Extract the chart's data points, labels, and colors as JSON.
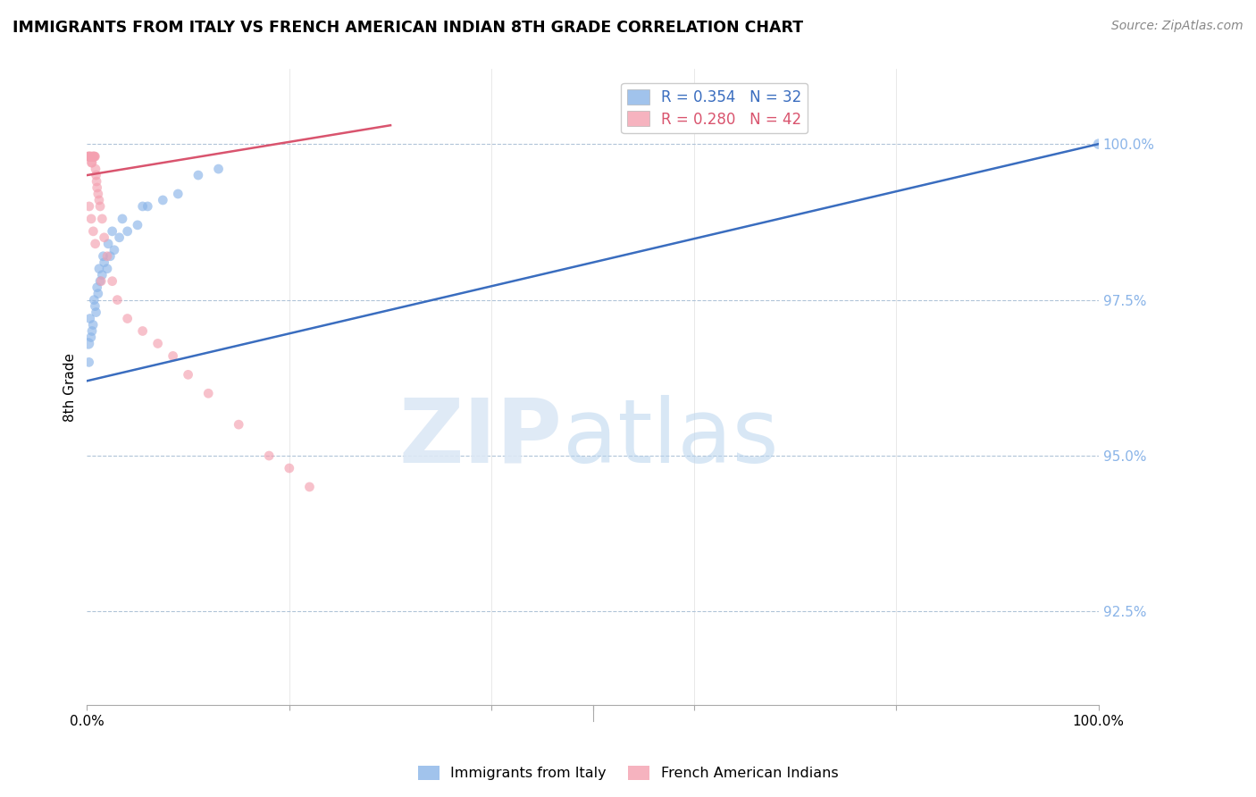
{
  "title": "IMMIGRANTS FROM ITALY VS FRENCH AMERICAN INDIAN 8TH GRADE CORRELATION CHART",
  "source": "Source: ZipAtlas.com",
  "ylabel": "8th Grade",
  "y_ticks": [
    92.5,
    95.0,
    97.5,
    100.0
  ],
  "x_range": [
    0.0,
    100.0
  ],
  "y_range": [
    91.0,
    101.2
  ],
  "blue_label": "Immigrants from Italy",
  "pink_label": "French American Indians",
  "blue_R": 0.354,
  "blue_N": 32,
  "pink_R": 0.28,
  "pink_N": 42,
  "blue_color": "#8ab4e8",
  "pink_color": "#f4a0b0",
  "blue_line_color": "#3a6dbf",
  "pink_line_color": "#d9546e",
  "blue_scatter_x": [
    0.15,
    0.3,
    0.5,
    0.7,
    0.9,
    1.1,
    1.3,
    1.5,
    1.7,
    2.0,
    2.3,
    2.7,
    3.2,
    4.0,
    5.0,
    6.0,
    7.5,
    9.0,
    11.0,
    13.0,
    0.2,
    0.4,
    0.6,
    0.8,
    1.0,
    1.2,
    1.6,
    2.1,
    2.5,
    3.5,
    5.5,
    100.0
  ],
  "blue_scatter_y": [
    96.8,
    97.2,
    97.0,
    97.5,
    97.3,
    97.6,
    97.8,
    97.9,
    98.1,
    98.0,
    98.2,
    98.3,
    98.5,
    98.6,
    98.7,
    99.0,
    99.1,
    99.2,
    99.5,
    99.6,
    96.5,
    96.9,
    97.1,
    97.4,
    97.7,
    98.0,
    98.2,
    98.4,
    98.6,
    98.8,
    99.0,
    100.0
  ],
  "blue_scatter_sizes": [
    80,
    60,
    60,
    60,
    60,
    60,
    60,
    60,
    60,
    60,
    60,
    60,
    60,
    60,
    60,
    60,
    60,
    60,
    60,
    60,
    60,
    60,
    60,
    60,
    60,
    60,
    60,
    60,
    60,
    60,
    60,
    70
  ],
  "pink_scatter_x": [
    0.1,
    0.15,
    0.2,
    0.25,
    0.3,
    0.35,
    0.4,
    0.45,
    0.5,
    0.55,
    0.6,
    0.65,
    0.7,
    0.75,
    0.8,
    0.85,
    0.9,
    0.95,
    1.0,
    1.1,
    1.2,
    1.3,
    1.5,
    1.7,
    2.0,
    2.5,
    3.0,
    4.0,
    5.5,
    7.0,
    8.5,
    10.0,
    12.0,
    15.0,
    18.0,
    20.0,
    22.0,
    0.22,
    0.42,
    0.62,
    0.82,
    1.4
  ],
  "pink_scatter_y": [
    99.8,
    99.8,
    99.8,
    99.8,
    99.8,
    99.8,
    99.8,
    99.7,
    99.7,
    99.8,
    99.8,
    99.8,
    99.8,
    99.8,
    99.8,
    99.6,
    99.5,
    99.4,
    99.3,
    99.2,
    99.1,
    99.0,
    98.8,
    98.5,
    98.2,
    97.8,
    97.5,
    97.2,
    97.0,
    96.8,
    96.6,
    96.3,
    96.0,
    95.5,
    95.0,
    94.8,
    94.5,
    99.0,
    98.8,
    98.6,
    98.4,
    97.8
  ],
  "pink_scatter_sizes": [
    60,
    60,
    60,
    60,
    60,
    60,
    60,
    60,
    60,
    60,
    60,
    60,
    60,
    60,
    60,
    60,
    60,
    60,
    60,
    60,
    60,
    60,
    60,
    60,
    60,
    60,
    60,
    60,
    60,
    60,
    60,
    60,
    60,
    60,
    60,
    60,
    60,
    60,
    60,
    60,
    60,
    60
  ],
  "blue_line_x0": 0.0,
  "blue_line_y0": 96.2,
  "blue_line_x1": 100.0,
  "blue_line_y1": 100.0,
  "pink_line_x0": 0.0,
  "pink_line_y0": 99.5,
  "pink_line_x1": 30.0,
  "pink_line_y1": 100.3
}
